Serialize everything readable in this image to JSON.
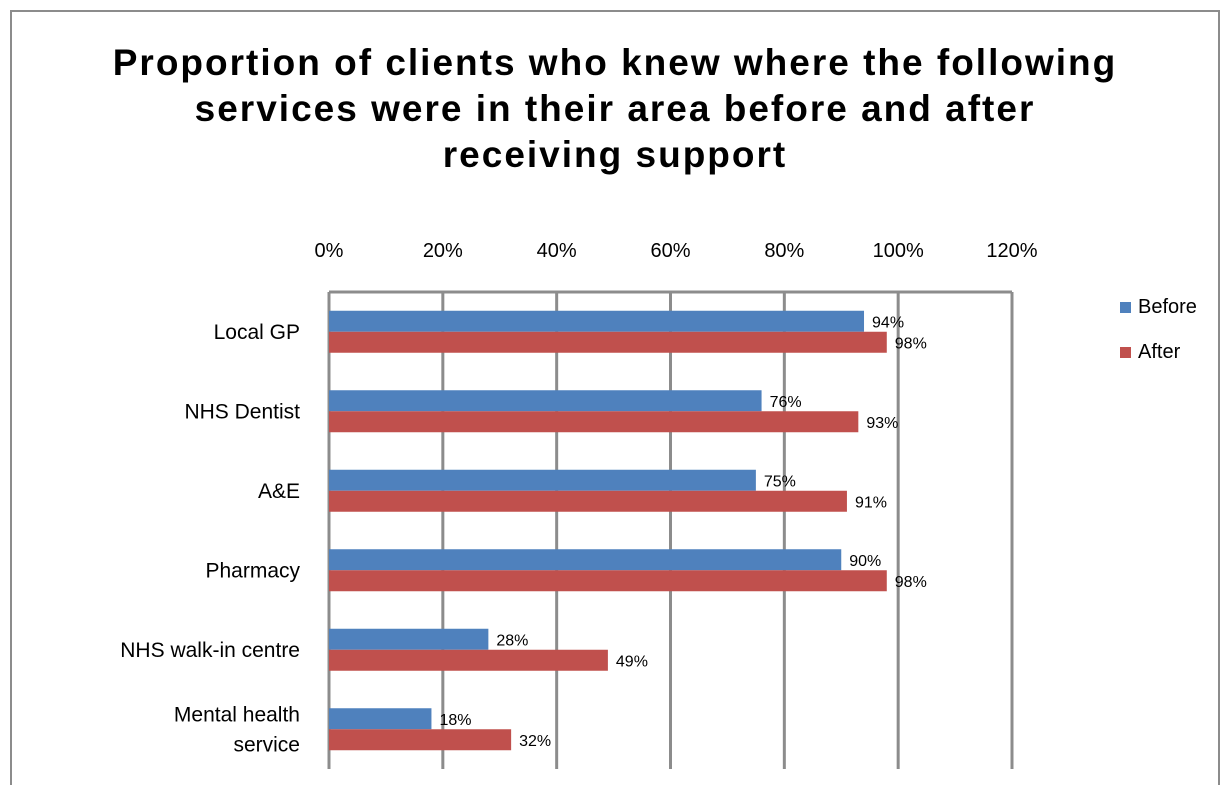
{
  "chart_data": {
    "type": "bar",
    "orientation": "horizontal",
    "title": "Proportion of clients who knew where the following services were in their area before and after receiving support",
    "categories": [
      "Local GP",
      "NHS Dentist",
      "A&E",
      "Pharmacy",
      "NHS walk-in centre",
      "Mental health service"
    ],
    "category_lines": [
      [
        "Local GP"
      ],
      [
        "NHS Dentist"
      ],
      [
        "A&E"
      ],
      [
        "Pharmacy"
      ],
      [
        "NHS walk-in centre"
      ],
      [
        "Mental health",
        "service"
      ]
    ],
    "series": [
      {
        "name": "Before",
        "color": "#4f81bd",
        "values": [
          94,
          76,
          75,
          90,
          28,
          18
        ],
        "labels": [
          "94%",
          "76%",
          "75%",
          "90%",
          "28%",
          "18%"
        ]
      },
      {
        "name": "After",
        "color": "#c0504d",
        "values": [
          98,
          93,
          91,
          98,
          49,
          32
        ],
        "labels": [
          "98%",
          "93%",
          "91%",
          "98%",
          "49%",
          "32%"
        ]
      }
    ],
    "xlim": [
      0,
      120
    ],
    "xticks": [
      0,
      20,
      40,
      60,
      80,
      100,
      120
    ],
    "xtick_labels": [
      "0%",
      "20%",
      "40%",
      "60%",
      "80%",
      "100%",
      "120%"
    ],
    "grid": true,
    "legend_position": "right"
  }
}
